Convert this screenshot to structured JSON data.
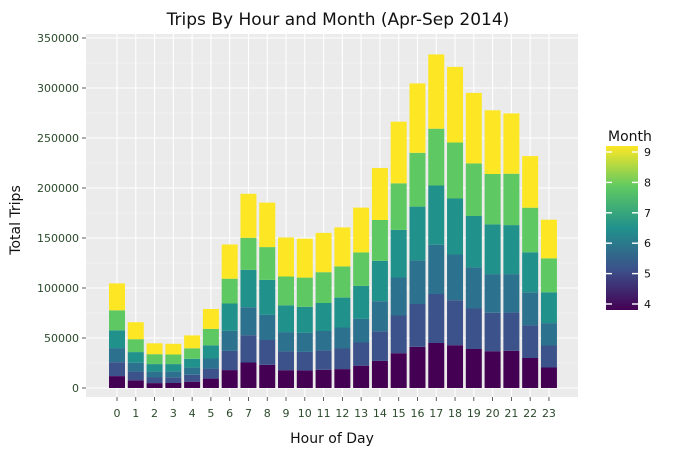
{
  "chart_data": {
    "type": "bar",
    "stacked": true,
    "title": "Trips By Hour and Month (Apr-Sep 2014)",
    "xlabel": "Hour of Day",
    "ylabel": "Total Trips",
    "categories": [
      "0",
      "1",
      "2",
      "3",
      "4",
      "5",
      "6",
      "7",
      "8",
      "9",
      "10",
      "11",
      "12",
      "13",
      "14",
      "15",
      "16",
      "17",
      "18",
      "19",
      "20",
      "21",
      "22",
      "23"
    ],
    "ylim": [
      0,
      350000
    ],
    "yticks": [
      "0",
      "50000",
      "100000",
      "150000",
      "200000",
      "250000",
      "300000",
      "350000"
    ],
    "ytick_values": [
      0,
      50000,
      100000,
      150000,
      200000,
      250000,
      300000,
      350000
    ],
    "legend_title": "Month",
    "legend_labels": [
      "9",
      "8",
      "7",
      "6",
      "5",
      "4"
    ],
    "legend_position": "right",
    "grid": true,
    "series": [
      {
        "name": "4",
        "color": "#440154",
        "values": [
          11900,
          7700,
          4900,
          5000,
          6300,
          9400,
          17900,
          25500,
          23200,
          17800,
          17600,
          18200,
          18900,
          22300,
          27100,
          34800,
          41200,
          45000,
          42800,
          39000,
          36800,
          37200,
          30000,
          20500
        ]
      },
      {
        "name": "5",
        "color": "#3b528b",
        "values": [
          13900,
          8700,
          5600,
          5700,
          6900,
          10000,
          19200,
          27300,
          24800,
          18800,
          18500,
          19200,
          20600,
          23200,
          29600,
          37700,
          42800,
          49000,
          45000,
          40500,
          38400,
          38200,
          32600,
          22000
        ]
      },
      {
        "name": "6",
        "color": "#2c728e",
        "values": [
          14100,
          8800,
          5900,
          6000,
          7200,
          10100,
          20000,
          28000,
          25100,
          19300,
          19000,
          19600,
          21000,
          23600,
          30100,
          38000,
          43600,
          49300,
          45700,
          41100,
          38700,
          38500,
          33100,
          22400
        ]
      },
      {
        "name": "7",
        "color": "#21918c",
        "values": [
          17800,
          10700,
          7500,
          7200,
          8800,
          13200,
          27400,
          37400,
          35000,
          26800,
          26100,
          28000,
          29900,
          33000,
          40400,
          47600,
          53800,
          59200,
          56000,
          51400,
          49700,
          49000,
          40000,
          30800
        ]
      },
      {
        "name": "8",
        "color": "#5ec962",
        "values": [
          20000,
          12900,
          9900,
          9600,
          10500,
          16400,
          24800,
          32000,
          32800,
          28800,
          29200,
          30800,
          31200,
          33500,
          40800,
          46600,
          53800,
          56800,
          56000,
          52600,
          50400,
          51400,
          44600,
          34000
        ]
      },
      {
        "name": "9",
        "color": "#fde725",
        "values": [
          26900,
          17000,
          10900,
          10700,
          12900,
          19900,
          34200,
          44000,
          44500,
          39000,
          39000,
          39300,
          39000,
          44800,
          52000,
          61600,
          69400,
          74300,
          75600,
          70500,
          63700,
          60300,
          51600,
          38600
        ]
      }
    ]
  }
}
